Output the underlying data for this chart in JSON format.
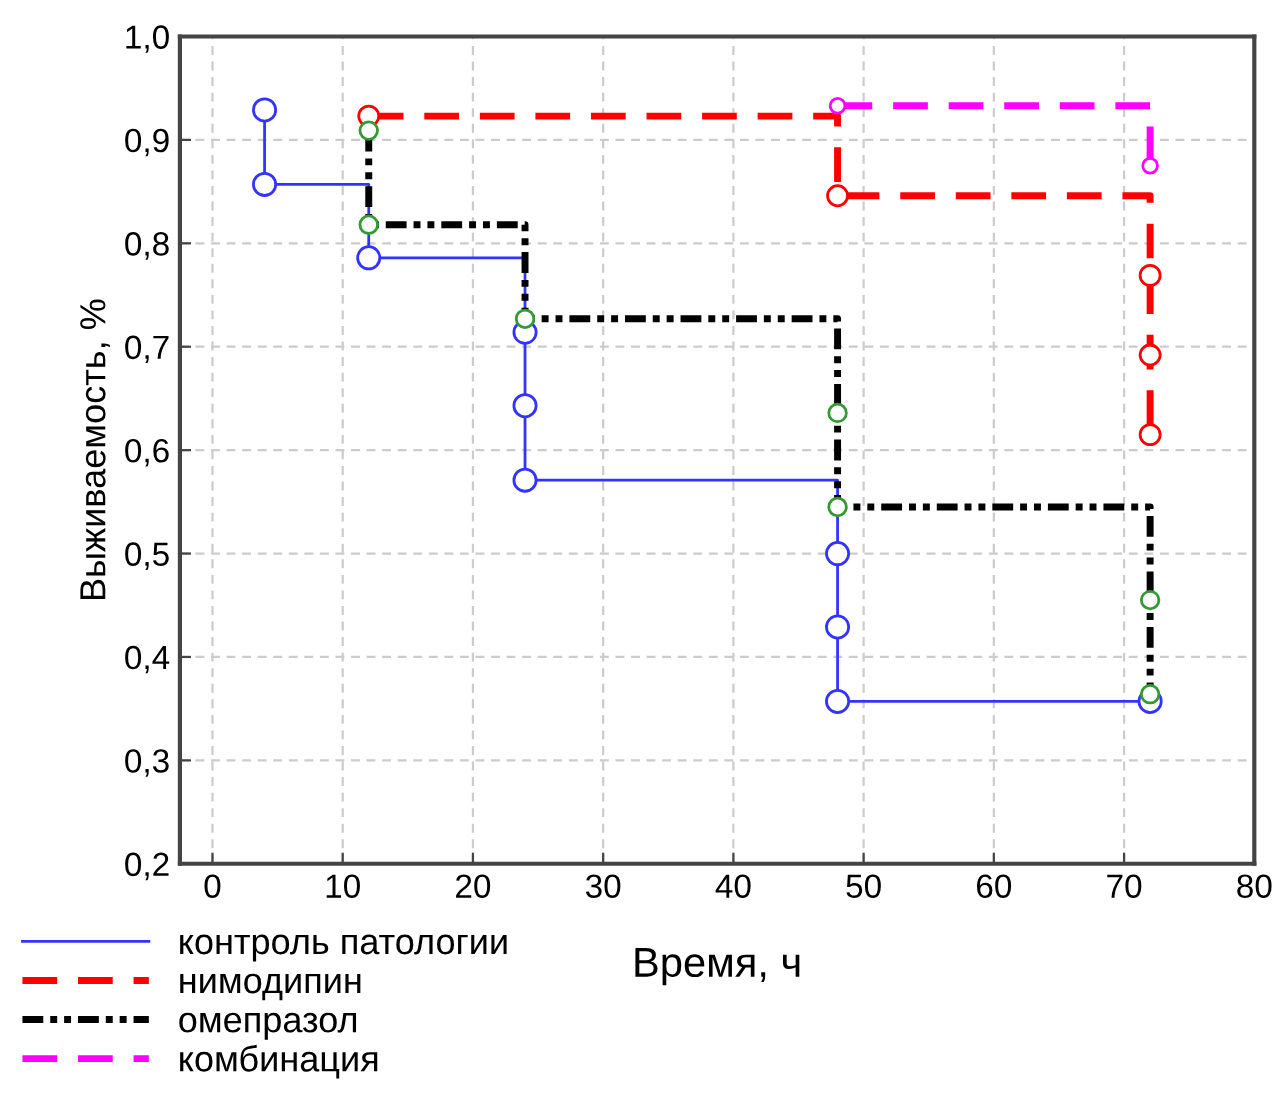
{
  "chart_data": {
    "type": "step",
    "xlabel": "Время, ч",
    "ylabel": "Выживаемость, %",
    "xlim": [
      -2.5,
      80
    ],
    "xticks": [
      0,
      10,
      20,
      30,
      40,
      50,
      60,
      70,
      80
    ],
    "ylim": [
      0.2,
      1.0
    ],
    "yticks": [
      {
        "value": 0.2,
        "label": "0,2"
      },
      {
        "value": 0.3,
        "label": "0,3"
      },
      {
        "value": 0.4,
        "label": "0,4"
      },
      {
        "value": 0.5,
        "label": "0,5"
      },
      {
        "value": 0.6,
        "label": "0,6"
      },
      {
        "value": 0.7,
        "label": "0,7"
      },
      {
        "value": 0.8,
        "label": "0,8"
      },
      {
        "value": 0.9,
        "label": "0,9"
      },
      {
        "value": 1.0,
        "label": "1,0"
      }
    ],
    "grid": true,
    "legend": "bottom",
    "marker": "circle",
    "series": [
      {
        "name": "контроль патологии",
        "color": "#3333ff",
        "line_style": "solid",
        "x": [
          4,
          4,
          12,
          24,
          24,
          24,
          48,
          48,
          48,
          72
        ],
        "values": [
          0.929,
          0.857,
          0.786,
          0.714,
          0.643,
          0.571,
          0.5,
          0.429,
          0.357,
          0.357
        ]
      },
      {
        "name": "нимодипин",
        "color": "#ff0000",
        "line_style": "dashed",
        "x": [
          12,
          48,
          72,
          72,
          72
        ],
        "values": [
          0.923,
          0.846,
          0.769,
          0.692,
          0.615
        ]
      },
      {
        "name": "омепразол",
        "color": "#000000",
        "line_style": "dotted",
        "colors": [
          "#339933",
          "#339933",
          "#339933",
          "#339933",
          "#339933",
          "#339933",
          "#339933"
        ],
        "x": [
          12,
          12,
          24,
          48,
          48,
          72,
          72
        ],
        "values": [
          0.909,
          0.818,
          0.727,
          0.636,
          0.545,
          0.455,
          0.364
        ]
      },
      {
        "name": "комбинация",
        "color": "#ff00ff",
        "line_style": "dashed",
        "x": [
          48,
          72
        ],
        "values": [
          0.933,
          0.875
        ]
      }
    ]
  }
}
